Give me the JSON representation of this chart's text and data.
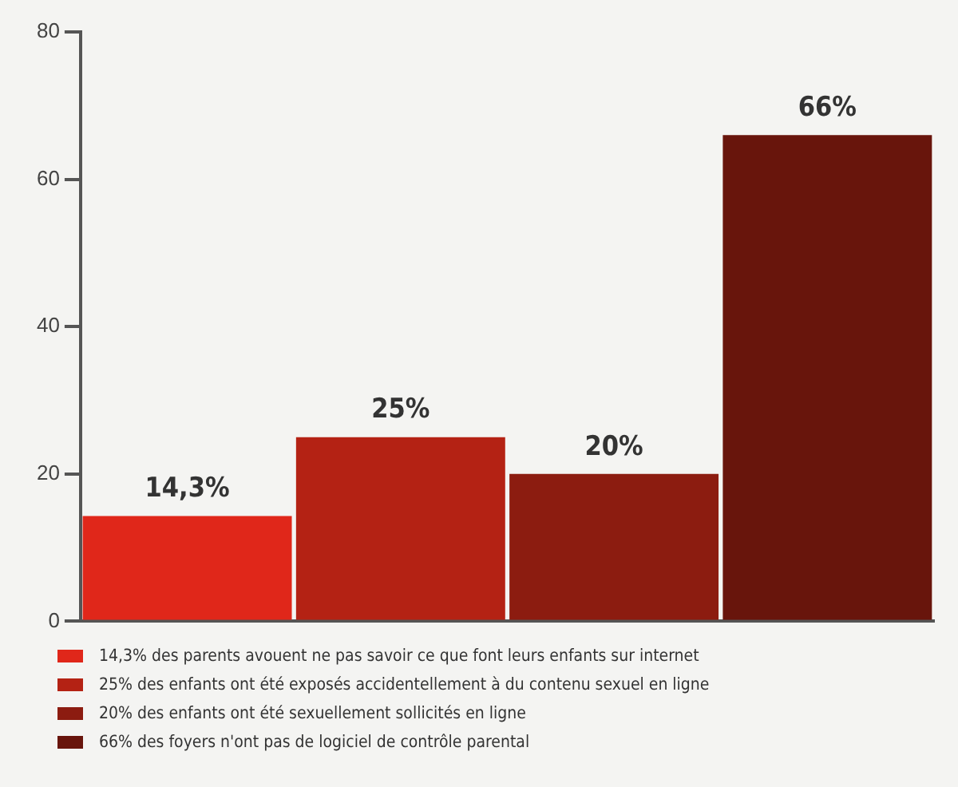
{
  "chart_data": {
    "type": "bar",
    "categories": [
      null,
      null,
      null,
      null
    ],
    "series": [
      {
        "name": "14,3% des parents avouent ne pas savoir ce que font leurs enfants sur internet",
        "color": "#e0271a",
        "values": [
          14.3,
          null,
          null,
          null
        ],
        "value_labels": [
          "14,3%",
          null,
          null,
          null
        ]
      },
      {
        "name": "25% des enfants ont été exposés accidentellement à du contenu sexuel en ligne",
        "color": "#b42214",
        "values": [
          null,
          25,
          null,
          null
        ],
        "value_labels": [
          null,
          "25%",
          null,
          null
        ]
      },
      {
        "name": "20% des enfants ont été sexuellement sollicités en ligne",
        "color": "#8c1c10",
        "values": [
          null,
          null,
          20,
          null
        ],
        "value_labels": [
          null,
          null,
          "20%",
          null
        ]
      },
      {
        "name": "66% des foyers n'ont pas de logiciel de contrôle parental",
        "color": "#68150c",
        "values": [
          null,
          null,
          null,
          66
        ],
        "value_labels": [
          null,
          null,
          null,
          "66%"
        ]
      }
    ],
    "ylim": [
      0,
      80
    ],
    "yticks": [
      0,
      20,
      40,
      60,
      80
    ],
    "grid": false,
    "legend": "bottom"
  }
}
